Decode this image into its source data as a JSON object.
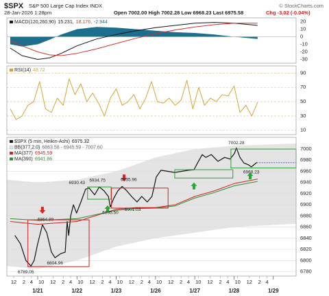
{
  "header": {
    "symbol": "$SPX",
    "name": "S&P 500 Large Cap Index INDX",
    "date": "28-Jan-2026 1:28pm",
    "quote": "Open 7002.00  High 7002.28  Low 6968.23  Last 6975.58",
    "change": "Chg -3.02 (-0.04%)",
    "source": "© StockCharts.com"
  },
  "chart_data": [
    {
      "type": "line",
      "xlim": [
        0.215,
        7.58
      ],
      "ylim": [
        -35,
        25
      ],
      "yticks": [
        20,
        10,
        0,
        -10,
        -20,
        -30
      ],
      "grid": "zero",
      "series": [
        {
          "name": "MACD(120,260,90)",
          "legend_value": "15.231,",
          "color": "#111111",
          "style": "line",
          "x": [
            0.3,
            0.6,
            1.0,
            1.3,
            1.6,
            2.0,
            2.5,
            3.0,
            3.5,
            4.0,
            4.5,
            5.0,
            5.5,
            6.0,
            6.6
          ],
          "values": [
            -15,
            -25,
            -30,
            -28,
            -22,
            -12,
            -3,
            3,
            8,
            12,
            15,
            18,
            19,
            18,
            15
          ]
        },
        {
          "legend_value": "18.176,",
          "color": "#d0342c",
          "style": "line",
          "x": [
            0.3,
            0.6,
            1.0,
            1.3,
            1.6,
            2.0,
            2.5,
            3.0,
            3.5,
            4.0,
            4.5,
            5.0,
            5.5,
            6.0,
            6.6
          ],
          "values": [
            -5,
            -12,
            -20,
            -24,
            -25,
            -22,
            -16,
            -9,
            -2,
            4,
            9,
            13,
            16,
            18,
            18
          ]
        },
        {
          "legend_value": "-2.944",
          "color": "#1d6e8c",
          "style": "histogram",
          "x": [
            0.3,
            0.6,
            1.0,
            1.3,
            1.6,
            2.0,
            2.5,
            3.0,
            3.5,
            4.0,
            4.5,
            5.0,
            5.5,
            6.0,
            6.6
          ],
          "values": [
            -10,
            -13,
            -10,
            -4,
            3,
            10,
            13,
            12,
            10,
            8,
            6,
            5,
            3,
            0,
            -3
          ]
        }
      ]
    },
    {
      "type": "line",
      "xlim": [
        0.215,
        7.58
      ],
      "ylim": [
        4,
        100
      ],
      "yticks": [
        90,
        70,
        50,
        30,
        10
      ],
      "grid": "dashed",
      "series": [
        {
          "name": "RSI(14)",
          "legend_value": "48.72",
          "color": "#d4a537",
          "style": "line",
          "x": [
            0.3,
            0.45,
            0.6,
            0.75,
            0.9,
            1.05,
            1.2,
            1.35,
            1.5,
            1.65,
            1.8,
            1.95,
            2.1,
            2.25,
            2.4,
            2.55,
            2.7,
            2.85,
            3.0,
            3.15,
            3.3,
            3.45,
            3.6,
            3.75,
            3.9,
            4.05,
            4.2,
            4.35,
            4.5,
            4.65,
            4.8,
            4.95,
            5.1,
            5.25,
            5.4,
            5.55,
            5.7,
            5.85,
            6.0,
            6.15,
            6.3,
            6.45,
            6.6
          ],
          "values": [
            40,
            25,
            30,
            45,
            50,
            78,
            40,
            35,
            55,
            45,
            82,
            60,
            75,
            50,
            62,
            48,
            30,
            55,
            68,
            45,
            50,
            60,
            40,
            55,
            78,
            50,
            48,
            55,
            45,
            52,
            80,
            40,
            70,
            45,
            55,
            50,
            60,
            58,
            72,
            35,
            45,
            30,
            49
          ]
        }
      ]
    },
    {
      "type": "line",
      "xlim": [
        0.215,
        7.58
      ],
      "ylim": [
        6772,
        7021
      ],
      "yticks": [
        7000,
        6980,
        6960,
        6940,
        6920,
        6900,
        6880,
        6860,
        6840,
        6820,
        6800,
        6780
      ],
      "grid": "solid",
      "xticks": [
        {
          "value": 0.39,
          "label": "12"
        },
        {
          "value": 0.65,
          "label": "2"
        },
        {
          "value": 0.84,
          "label": "4"
        },
        {
          "value": 1.09,
          "label": "10"
        },
        {
          "value": 1.39,
          "label": "12"
        },
        {
          "value": 1.65,
          "label": "2"
        },
        {
          "value": 1.84,
          "label": "4"
        },
        {
          "value": 2.09,
          "label": "10"
        },
        {
          "value": 2.39,
          "label": "12"
        },
        {
          "value": 2.65,
          "label": "2"
        },
        {
          "value": 2.84,
          "label": "4"
        },
        {
          "value": 3.09,
          "label": "10"
        },
        {
          "value": 3.39,
          "label": "12"
        },
        {
          "value": 3.65,
          "label": "2"
        },
        {
          "value": 3.84,
          "label": "4"
        },
        {
          "value": 4.09,
          "label": "10"
        },
        {
          "value": 4.39,
          "label": "12"
        },
        {
          "value": 4.65,
          "label": "2"
        },
        {
          "value": 4.84,
          "label": "4"
        },
        {
          "value": 5.09,
          "label": "10"
        },
        {
          "value": 5.39,
          "label": "12"
        },
        {
          "value": 5.65,
          "label": "2"
        },
        {
          "value": 5.84,
          "label": "4"
        },
        {
          "value": 6.09,
          "label": "10"
        },
        {
          "value": 6.39,
          "label": "12"
        },
        {
          "value": 6.65,
          "label": "2"
        },
        {
          "value": 6.84,
          "label": "4"
        }
      ],
      "date_ticks": [
        {
          "value": 1,
          "label": "1/21"
        },
        {
          "value": 2,
          "label": "1/22"
        },
        {
          "value": 3,
          "label": "1/23"
        },
        {
          "value": 4,
          "label": "1/26"
        },
        {
          "value": 5,
          "label": "1/27"
        },
        {
          "value": 6,
          "label": "1/28"
        },
        {
          "value": 7,
          "label": "1/29"
        }
      ],
      "series": [
        {
          "name": "$SPX (5 min, Heikin-Ashi)",
          "legend_value": "6975.32",
          "color": "#111111",
          "style": "line",
          "x": [
            0.42,
            0.56,
            0.7,
            0.83,
            0.91,
            1.0,
            1.12,
            1.23,
            1.35,
            1.44,
            1.58,
            1.7,
            1.75,
            1.79,
            1.84,
            1.91,
            1.99,
            2.1,
            2.22,
            2.31,
            2.45,
            2.57,
            2.69,
            2.8,
            2.85,
            2.94,
            3.04,
            3.15,
            3.27,
            3.39,
            3.53,
            3.65,
            3.79,
            3.91,
            4.02,
            4.14,
            4.32,
            4.49,
            4.66,
            4.84,
            4.98,
            5.07,
            5.19,
            5.28,
            5.42,
            5.59,
            5.76,
            5.9,
            6.01,
            6.06,
            6.15,
            6.25,
            6.36,
            6.44,
            6.58
          ],
          "values": [
            6845,
            6830,
            6800,
            6790,
            6800,
            6830,
            6864,
            6850,
            6815,
            6805,
            6812,
            6815,
            6870,
            6845,
            6880,
            6900,
            6885,
            6905,
            6928,
            6930,
            6918,
            6932,
            6925,
            6915,
            6896,
            6912,
            6925,
            6933,
            6925,
            6915,
            6905,
            6915,
            6905,
            6915,
            6950,
            6962,
            6960,
            6958,
            6960,
            6962,
            6963,
            6975,
            6990,
            6985,
            6990,
            6978,
            6985,
            6982,
            6992,
            7002,
            6985,
            6975,
            6972,
            6968,
            6976
          ]
        },
        {
          "name": "BB(377,2.0)",
          "legend_value": "6863.58 - 6945.59 - 7007.60",
          "color": "#e4e4e4",
          "style": "area",
          "x": [
            0.215,
            1,
            2,
            3,
            4,
            5,
            6,
            7.58
          ],
          "values": [
            6945,
            6940,
            6945,
            6960,
            6985,
            7000,
            7006,
            7010
          ]
        },
        {
          "color": "#ffffff",
          "style": "area",
          "x": [
            0.215,
            1,
            2,
            3,
            4,
            5,
            6,
            7.58
          ],
          "values": [
            6790,
            6785,
            6800,
            6825,
            6840,
            6850,
            6860,
            6866
          ]
        },
        {
          "name": "MA(377)",
          "legend_value": "6945.59",
          "color": "#cc2222",
          "style": "line",
          "x": [
            0.3,
            1,
            2,
            3,
            3.5,
            4,
            4.5,
            5,
            5.5,
            6,
            6.6
          ],
          "values": [
            6870,
            6865,
            6870,
            6892,
            6895,
            6895,
            6900,
            6915,
            6925,
            6938,
            6946
          ]
        },
        {
          "name": "MA(390)",
          "legend_value": "6941.86",
          "color": "#2e8b2e",
          "style": "line",
          "x": [
            0.3,
            1,
            2,
            3,
            3.5,
            4,
            4.5,
            5,
            5.5,
            6,
            6.6
          ],
          "values": [
            6875,
            6872,
            6875,
            6890,
            6893,
            6894,
            6898,
            6912,
            6922,
            6934,
            6942
          ]
        }
      ],
      "boxes": [
        {
          "x0": 0.75,
          "x1": 2.31,
          "y0": 6789,
          "y1": 6873,
          "color": "#cc2222"
        },
        {
          "x0": 2.27,
          "x1": 2.87,
          "y0": 6910,
          "y1": 6932,
          "color": "#2e9e2e"
        },
        {
          "x0": 2.88,
          "x1": 4.32,
          "y0": 6894,
          "y1": 6930,
          "color": "#cc2222"
        },
        {
          "x0": 4.49,
          "x1": 5.97,
          "y0": 6948,
          "y1": 6963,
          "color": "#2e9e2e"
        },
        {
          "x0": 5.92,
          "x1": 7.58,
          "y0": 6966,
          "y1": 7000,
          "color": "#2e9e2e"
        }
      ],
      "arrows": [
        {
          "x": 1.12,
          "y": 6884,
          "direction": "down",
          "color": "#dd2222"
        },
        {
          "x": 3.2,
          "y": 6942,
          "direction": "down",
          "color": "#dd2222"
        },
        {
          "x": 2.78,
          "y": 6899,
          "direction": "up",
          "color": "#22aa33"
        },
        {
          "x": 4.98,
          "y": 6940,
          "direction": "up",
          "color": "#22aa33"
        },
        {
          "x": 6.41,
          "y": 6958,
          "direction": "up",
          "color": "#22aa33"
        }
      ],
      "annotations": [
        {
          "x": 6.06,
          "value": 7002.28,
          "pos": "above"
        },
        {
          "x": 2.0,
          "value": 6930.43,
          "pos": "above"
        },
        {
          "x": 2.52,
          "value": 6934.75,
          "pos": "above"
        },
        {
          "x": 3.32,
          "value": 6935.96,
          "pos": "above"
        },
        {
          "x": 2.85,
          "value": 6895.5,
          "label": "6895.50",
          "pos": "below"
        },
        {
          "x": 3.42,
          "value": 6901.03,
          "pos": "below"
        },
        {
          "x": 6.44,
          "value": 6968.23,
          "pos": "below"
        },
        {
          "x": 1.2,
          "value": 6864.89,
          "pos": "above"
        },
        {
          "x": 1.44,
          "value": 6804.96,
          "pos": "below"
        },
        {
          "x": 0.7,
          "value": 6789.05,
          "pos": "below"
        }
      ],
      "last": 6975.58,
      "last_color": "#2233aa"
    }
  ]
}
